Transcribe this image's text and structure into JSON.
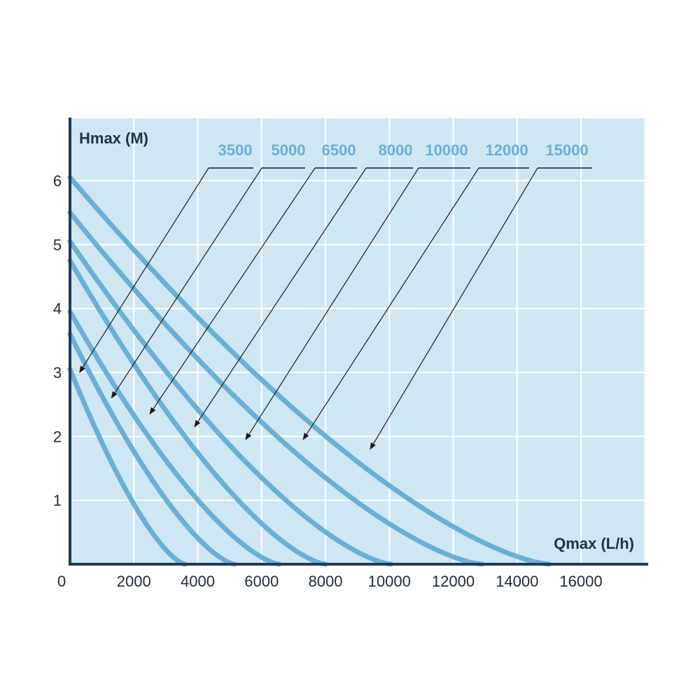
{
  "colors": {
    "plot_background": "#cfe7f3",
    "grid": "#ffffff",
    "axis": "#1f3a5a",
    "curve": "#6aafd6",
    "label": "#6aafd6",
    "leader": "#1a1a1a"
  },
  "chart_data": {
    "type": "line",
    "title": "",
    "xlabel": "Qmax (L/h)",
    "ylabel": "Hmax (M)",
    "xlim": [
      0,
      18000
    ],
    "ylim": [
      0,
      7
    ],
    "x_ticks": [
      "0",
      "2000",
      "4000",
      "6000",
      "8000",
      "10000",
      "12000",
      "14000",
      "16000"
    ],
    "x_tick_values": [
      0,
      2000,
      4000,
      6000,
      8000,
      10000,
      12000,
      14000,
      16000
    ],
    "y_ticks": [
      "1",
      "2",
      "3",
      "4",
      "5",
      "6"
    ],
    "y_tick_values": [
      1,
      2,
      3,
      4,
      5,
      6
    ],
    "grid": true,
    "legend_placement": "top, labels with leader arrows",
    "series": [
      {
        "name": "3500",
        "hmax": 3.05,
        "qmax": 3600,
        "label_arrow_target": [
          300,
          3.0
        ]
      },
      {
        "name": "5000",
        "hmax": 3.6,
        "qmax": 5150,
        "label_arrow_target": [
          1300,
          2.6
        ]
      },
      {
        "name": "6500",
        "hmax": 3.95,
        "qmax": 6550,
        "label_arrow_target": [
          2500,
          2.35
        ]
      },
      {
        "name": "8000",
        "hmax": 4.75,
        "qmax": 8000,
        "label_arrow_target": [
          3900,
          2.15
        ]
      },
      {
        "name": "10000",
        "hmax": 5.05,
        "qmax": 10050,
        "label_arrow_target": [
          5500,
          1.95
        ]
      },
      {
        "name": "12000",
        "hmax": 5.5,
        "qmax": 12900,
        "label_arrow_target": [
          7300,
          1.95
        ]
      },
      {
        "name": "15000",
        "hmax": 6.05,
        "qmax": 15000,
        "label_arrow_target": [
          9400,
          1.8
        ]
      }
    ]
  }
}
